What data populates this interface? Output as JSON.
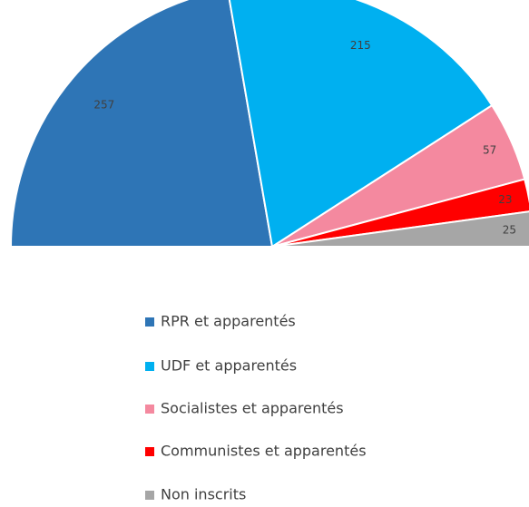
{
  "chart_data": {
    "type": "semi-donut",
    "categories": [
      "RPR et apparentés",
      "UDF et apparentés",
      "Socialistes et apparentés",
      "Communistes et apparentés",
      "Non inscrits"
    ],
    "values": [
      257,
      215,
      57,
      23,
      25
    ],
    "colors": [
      "#2e75b6",
      "#00b0f0",
      "#f4899f",
      "#ff0000",
      "#a6a6a6"
    ],
    "legend": "bottom"
  }
}
